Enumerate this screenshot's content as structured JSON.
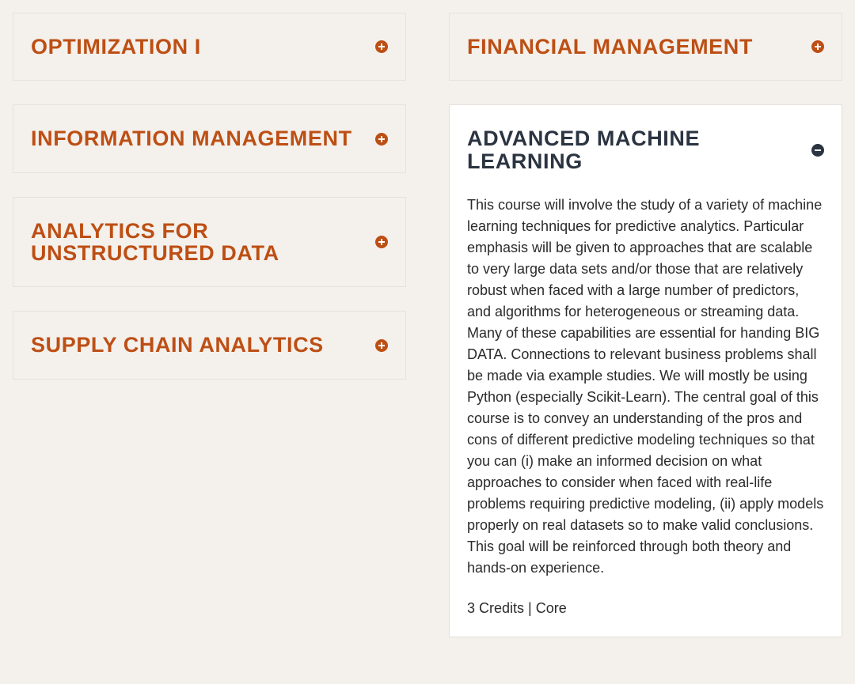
{
  "colors": {
    "page_background": "#f4f0ec",
    "collapsed_background": "#f4f0ec",
    "expanded_background": "#ffffff",
    "border": "#e5e1dc",
    "collapsed_title": "#bd4f14",
    "expanded_title": "#2b3441",
    "plus_icon_bg": "#bd4f14",
    "minus_icon_bg": "#2b3441",
    "body_text": "#2b2b2b"
  },
  "left_column": [
    {
      "title": "OPTIMIZATION I",
      "expanded": false
    },
    {
      "title": "INFORMATION MANAGEMENT",
      "expanded": false
    },
    {
      "title": "ANALYTICS FOR UNSTRUCTURED DATA",
      "expanded": false
    },
    {
      "title": "SUPPLY CHAIN ANALYTICS",
      "expanded": false
    }
  ],
  "right_column": [
    {
      "title": "FINANCIAL MANAGEMENT",
      "expanded": false
    },
    {
      "title": "ADVANCED MACHINE LEARNING",
      "expanded": true,
      "description": "This course will involve the study of a variety of machine learning techniques for predictive analytics. Particular emphasis will be given to approaches that are scalable to very large data sets and/or those that are relatively robust when faced with a large number of predictors, and algorithms for heterogeneous or streaming data. Many of these capabilities are essential for handing BIG DATA. Connections to relevant business problems shall be made via example studies. We will mostly be using Python (especially Scikit-Learn). The central goal of this course is to convey an understanding of the pros and cons of different predictive modeling techniques so that you can (i) make an informed decision on what approaches to consider when faced with real-life problems requiring predictive modeling, (ii) apply models properly on real datasets so to make valid conclusions. This goal will be reinforced through both theory and hands-on experience.",
      "meta": "3 Credits | Core"
    }
  ]
}
